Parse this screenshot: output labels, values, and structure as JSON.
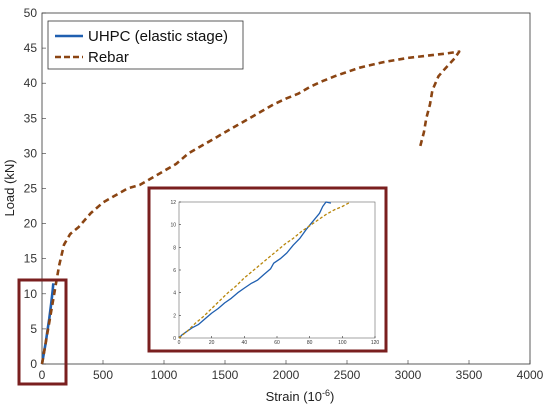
{
  "chart_data": [
    {
      "type": "line",
      "xlabel": "Strain (10",
      "xlabel_sup": "-6",
      "xlabel_close": ")",
      "ylabel": "Load (kN)",
      "xlim": [
        0,
        4000
      ],
      "ylim": [
        0,
        50
      ],
      "xticks": [
        "0",
        "500",
        "1000",
        "1500",
        "2000",
        "2500",
        "3000",
        "3500",
        "4000"
      ],
      "yticks": [
        "0",
        "5",
        "10",
        "15",
        "20",
        "25",
        "30",
        "35",
        "40",
        "45",
        "50"
      ],
      "legend_position": "top-left",
      "grid": false,
      "series": [
        {
          "name": "UHPC (elastic stage)",
          "color": "#1f5fb0",
          "style": "solid",
          "points": [
            [
              0,
              0
            ],
            [
              15,
              1.5
            ],
            [
              30,
              3
            ],
            [
              45,
              4.8
            ],
            [
              60,
              6.5
            ],
            [
              75,
              8.5
            ],
            [
              88,
              10.5
            ],
            [
              93,
              11.5
            ]
          ]
        },
        {
          "name": "Rebar",
          "color": "#8b4513",
          "style": "dashed",
          "points": [
            [
              0,
              0
            ],
            [
              40,
              4
            ],
            [
              80,
              8
            ],
            [
              110,
              11
            ],
            [
              140,
              14
            ],
            [
              180,
              17
            ],
            [
              230,
              18.5
            ],
            [
              300,
              19.5
            ],
            [
              400,
              21.5
            ],
            [
              500,
              23
            ],
            [
              600,
              24
            ],
            [
              700,
              25
            ],
            [
              800,
              25.5
            ],
            [
              900,
              26.5
            ],
            [
              1000,
              27.5
            ],
            [
              1100,
              28.5
            ],
            [
              1200,
              30
            ],
            [
              1300,
              31
            ],
            [
              1400,
              32
            ],
            [
              1500,
              33
            ],
            [
              1600,
              34
            ],
            [
              1700,
              35
            ],
            [
              1800,
              36
            ],
            [
              1900,
              37
            ],
            [
              2000,
              37.8
            ],
            [
              2100,
              38.5
            ],
            [
              2200,
              39.5
            ],
            [
              2300,
              40.3
            ],
            [
              2400,
              41
            ],
            [
              2500,
              41.6
            ],
            [
              2600,
              42.2
            ],
            [
              2700,
              42.6
            ],
            [
              2800,
              43
            ],
            [
              2900,
              43.3
            ],
            [
              3000,
              43.6
            ],
            [
              3100,
              43.8
            ],
            [
              3200,
              44
            ],
            [
              3300,
              44.2
            ],
            [
              3420,
              44.5
            ],
            [
              3380,
              43.5
            ],
            [
              3300,
              42
            ],
            [
              3250,
              41
            ],
            [
              3200,
              39
            ],
            [
              3180,
              37
            ],
            [
              3150,
              35
            ],
            [
              3130,
              33
            ],
            [
              3100,
              31
            ]
          ]
        }
      ]
    },
    {
      "type": "line",
      "title": "",
      "xlim": [
        0,
        120
      ],
      "ylim": [
        0,
        12
      ],
      "xticks": [
        "0",
        "20",
        "40",
        "60",
        "80",
        "100",
        "120"
      ],
      "yticks": [
        "0",
        "2",
        "4",
        "6",
        "8",
        "10",
        "12"
      ],
      "series": [
        {
          "color": "#1f5fb0",
          "style": "solid",
          "points": [
            [
              0,
              0
            ],
            [
              2,
              0.3
            ],
            [
              5,
              0.6
            ],
            [
              8,
              0.9
            ],
            [
              12,
              1.2
            ],
            [
              16,
              1.7
            ],
            [
              20,
              2.2
            ],
            [
              24,
              2.6
            ],
            [
              28,
              3.1
            ],
            [
              32,
              3.5
            ],
            [
              36,
              4.0
            ],
            [
              40,
              4.4
            ],
            [
              44,
              4.8
            ],
            [
              48,
              5.1
            ],
            [
              52,
              5.6
            ],
            [
              56,
              6.1
            ],
            [
              58,
              6.6
            ],
            [
              62,
              7.0
            ],
            [
              66,
              7.5
            ],
            [
              70,
              8.2
            ],
            [
              74,
              8.8
            ],
            [
              78,
              9.6
            ],
            [
              82,
              10.3
            ],
            [
              86,
              11.0
            ],
            [
              88,
              11.6
            ],
            [
              90,
              12.0
            ],
            [
              93,
              11.9
            ]
          ]
        },
        {
          "color": "#b8860b",
          "style": "dashed",
          "points": [
            [
              0,
              0
            ],
            [
              5,
              0.6
            ],
            [
              10,
              1.3
            ],
            [
              15,
              1.9
            ],
            [
              20,
              2.6
            ],
            [
              25,
              3.3
            ],
            [
              30,
              4.0
            ],
            [
              35,
              4.6
            ],
            [
              40,
              5.3
            ],
            [
              45,
              5.9
            ],
            [
              50,
              6.5
            ],
            [
              55,
              7.1
            ],
            [
              60,
              7.7
            ],
            [
              65,
              8.3
            ],
            [
              70,
              8.8
            ],
            [
              75,
              9.4
            ],
            [
              80,
              9.9
            ],
            [
              85,
              10.4
            ],
            [
              90,
              10.9
            ],
            [
              95,
              11.3
            ],
            [
              100,
              11.6
            ],
            [
              105,
              12.0
            ]
          ]
        }
      ]
    }
  ]
}
